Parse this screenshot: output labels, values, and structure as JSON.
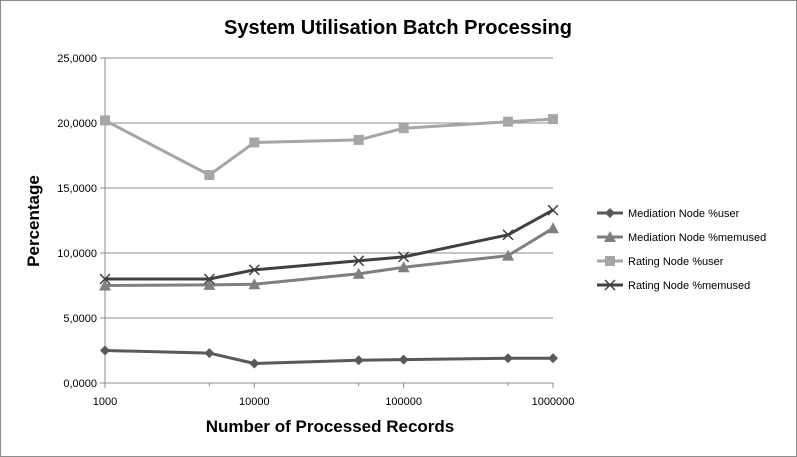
{
  "chart_data": {
    "type": "line",
    "title": "System Utilisation Batch Processing",
    "xlabel": "Number of Processed Records",
    "ylabel": "Percentage",
    "x_scale": "log",
    "xlim": [
      1000,
      1000000
    ],
    "ylim": [
      0,
      25
    ],
    "x_ticks": [
      "1000",
      "10000",
      "100000",
      "1000000"
    ],
    "y_ticks": [
      "0,0000",
      "5,0000",
      "10,0000",
      "15,0000",
      "20,0000",
      "25,0000"
    ],
    "grid": "horizontal major gridlines",
    "legend_position": "right",
    "x": [
      1000,
      5000,
      10000,
      50000,
      100000,
      500000,
      1000000
    ],
    "series": [
      {
        "name": "Mediation Node %user",
        "marker": "diamond",
        "color": "#595959",
        "values": [
          2.5,
          2.3,
          1.5,
          1.75,
          1.8,
          1.9,
          1.9
        ]
      },
      {
        "name": "Mediation Node %memused",
        "marker": "triangle",
        "color": "#7f7f7f",
        "values": [
          7.5,
          7.55,
          7.6,
          8.4,
          8.9,
          9.8,
          11.9
        ]
      },
      {
        "name": "Rating Node %user",
        "marker": "square",
        "color": "#a6a6a6",
        "values": [
          20.2,
          16.0,
          18.5,
          18.7,
          19.6,
          20.1,
          20.3
        ]
      },
      {
        "name": "Rating Node %memused",
        "marker": "cross",
        "color": "#404040",
        "values": [
          8.0,
          8.0,
          8.7,
          9.4,
          9.7,
          11.4,
          13.3
        ]
      }
    ]
  }
}
